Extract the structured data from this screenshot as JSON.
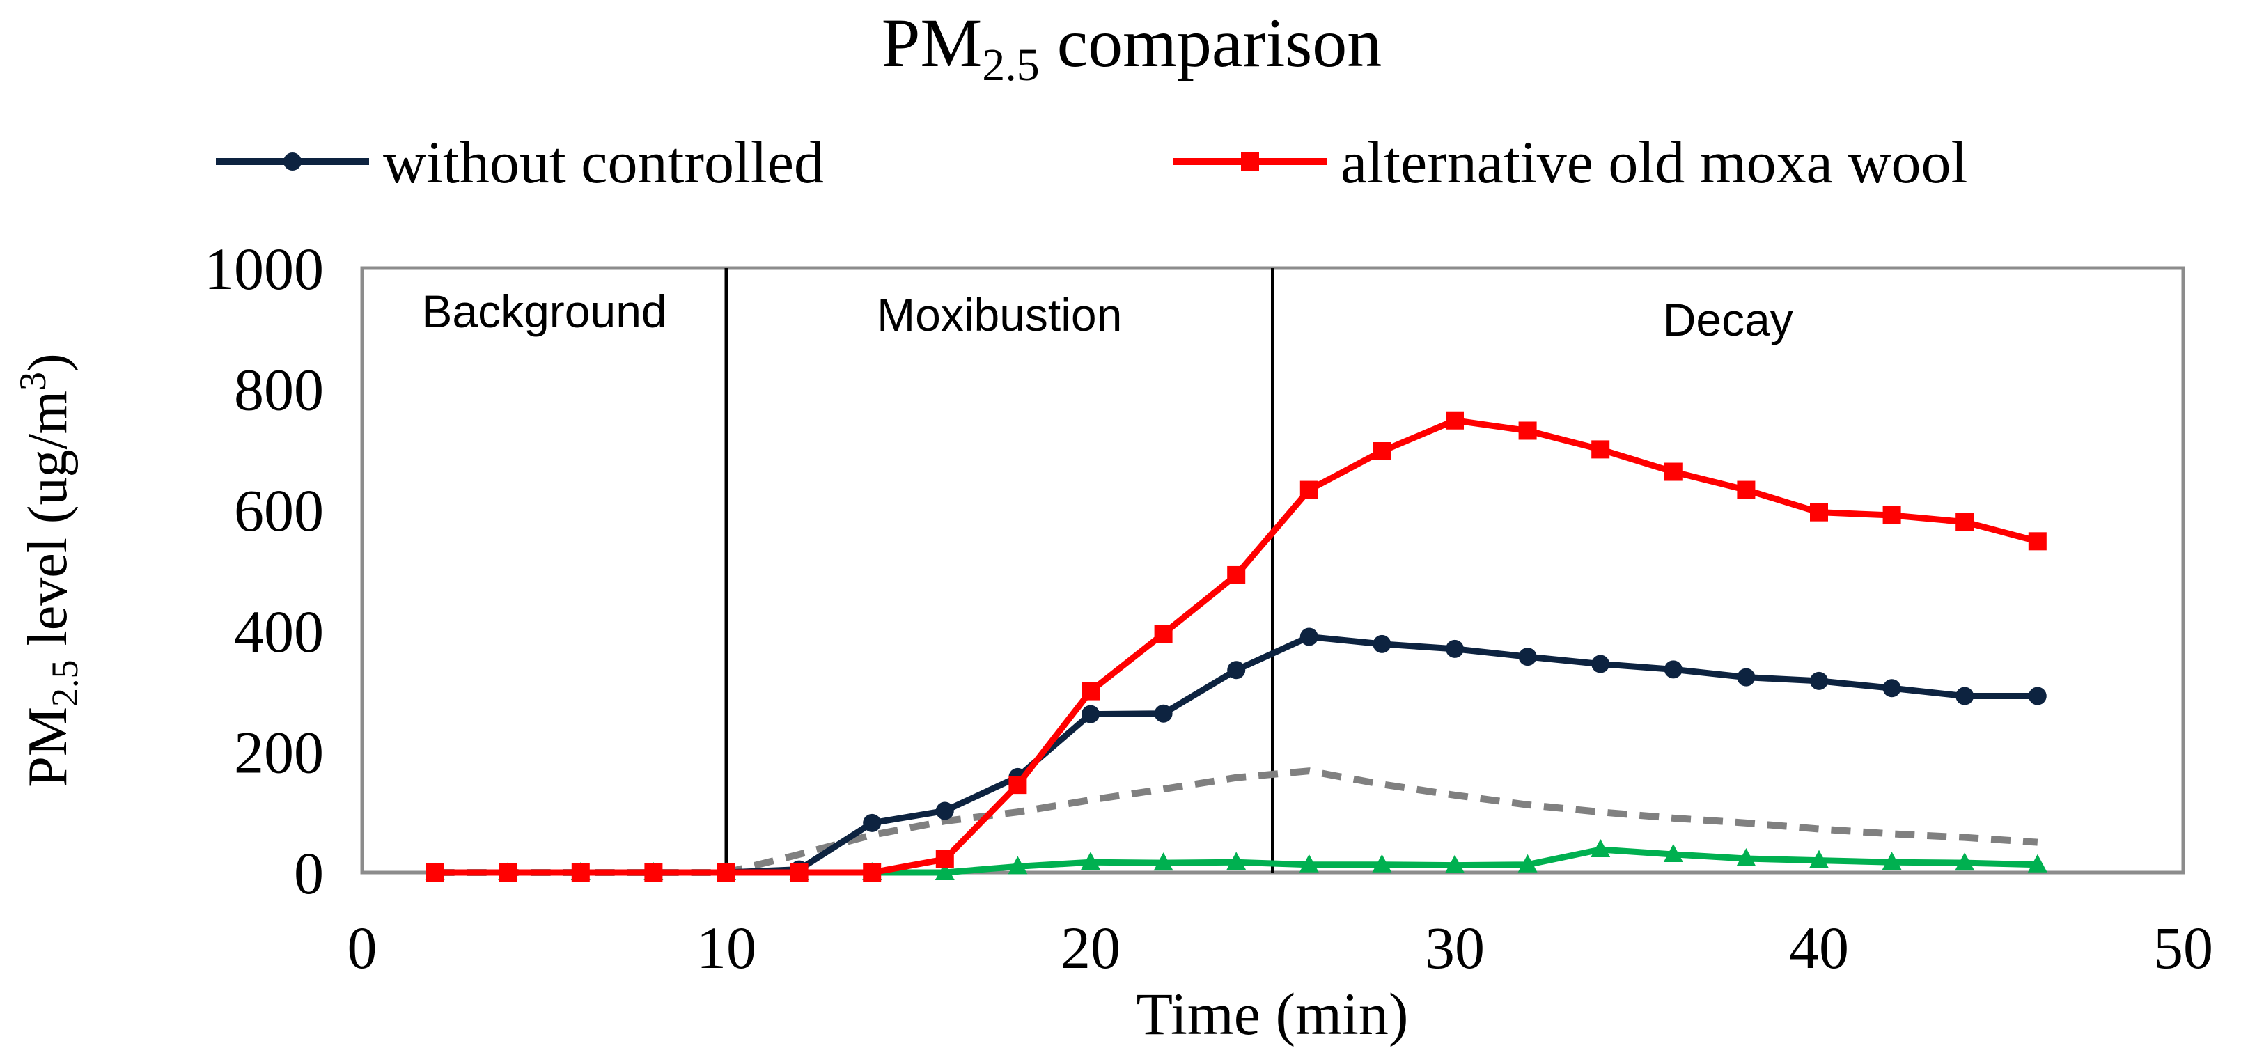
{
  "chart_data": {
    "type": "line",
    "title": "PM",
    "title_subscript": "2.5",
    "title_suffix": " comparison",
    "xlabel": "Time (min)",
    "ylabel": "PM",
    "ylabel_subscript": "2.5",
    "ylabel_suffix": " level (ug/m",
    "ylabel_superscript": "3",
    "ylabel_close": ")",
    "xlim": [
      0,
      50
    ],
    "ylim": [
      0,
      1000
    ],
    "xticks": [
      0,
      10,
      20,
      30,
      40,
      50
    ],
    "yticks": [
      0,
      200,
      400,
      600,
      800,
      1000
    ],
    "grid": false,
    "legend_position": "top",
    "x": [
      2,
      4,
      6,
      8,
      10,
      12,
      14,
      16,
      18,
      20,
      22,
      24,
      26,
      28,
      30,
      32,
      34,
      36,
      38,
      40,
      42,
      44,
      46
    ],
    "series": [
      {
        "name": "without controlled",
        "color": "#0d2340",
        "marker": "circle",
        "dashed": false,
        "values": [
          0,
          0,
          0,
          0,
          0,
          5,
          82,
          102,
          158,
          262,
          263,
          335,
          390,
          378,
          370,
          357,
          345,
          336,
          323,
          317,
          305,
          292,
          292
        ]
      },
      {
        "name": "alternative old moxa wool",
        "color": "#ff0000",
        "marker": "square",
        "dashed": false,
        "values": [
          0,
          0,
          0,
          0,
          0,
          0,
          0,
          22,
          145,
          300,
          395,
          492,
          633,
          697,
          748,
          731,
          700,
          663,
          633,
          596,
          591,
          580,
          548
        ]
      },
      {
        "name": "",
        "color": "#808080",
        "marker": "none",
        "dashed": true,
        "values": [
          0,
          0,
          0,
          0,
          0,
          30,
          62,
          85,
          100,
          120,
          138,
          157,
          168,
          146,
          128,
          112,
          100,
          90,
          82,
          72,
          64,
          58,
          50
        ]
      },
      {
        "name": "",
        "color": "#00b050",
        "marker": "triangle",
        "dashed": false,
        "values": [
          0,
          0,
          0,
          0,
          0,
          0,
          0,
          0,
          10,
          17,
          16,
          17,
          13,
          13,
          12,
          13,
          38,
          30,
          23,
          20,
          17,
          16,
          13
        ]
      }
    ],
    "phases": [
      {
        "label": "Background",
        "x_start": 0,
        "x_end": 10
      },
      {
        "label": "Moxibustion",
        "x_start": 10,
        "x_end": 25
      },
      {
        "label": "Decay",
        "x_start": 25,
        "x_end": 50
      }
    ],
    "phase_dividers": [
      10,
      25
    ]
  }
}
